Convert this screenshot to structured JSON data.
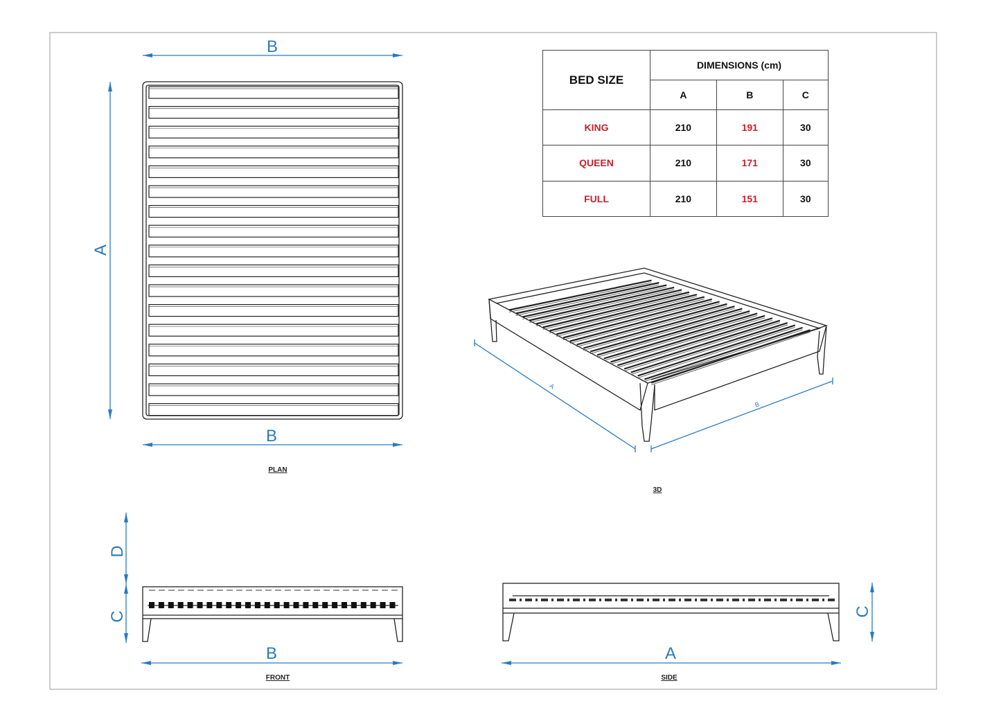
{
  "colors": {
    "dimension": "#2a7bbf",
    "highlight": "#c8202a",
    "line": "#222222"
  },
  "views": {
    "plan": {
      "title": "PLAN",
      "dim_top": "B",
      "dim_left": "A",
      "dim_bottom": "B"
    },
    "iso": {
      "title": "3D",
      "dim_a": "A",
      "dim_b": "B"
    },
    "front": {
      "title": "FRONT",
      "dim_c": "C",
      "dim_d": "D",
      "dim_b": "B"
    },
    "side": {
      "title": "SIDE",
      "dim_c": "C",
      "dim_a": "A"
    }
  },
  "table": {
    "header_size": "BED SIZE",
    "header_dims": "DIMENSIONS (cm)",
    "columns": [
      "A",
      "B",
      "C"
    ],
    "rows": [
      {
        "size": "KING",
        "a": "210",
        "b": "191",
        "c": "30"
      },
      {
        "size": "QUEEN",
        "a": "210",
        "b": "171",
        "c": "30"
      },
      {
        "size": "FULL",
        "a": "210",
        "b": "151",
        "c": "30"
      }
    ]
  }
}
